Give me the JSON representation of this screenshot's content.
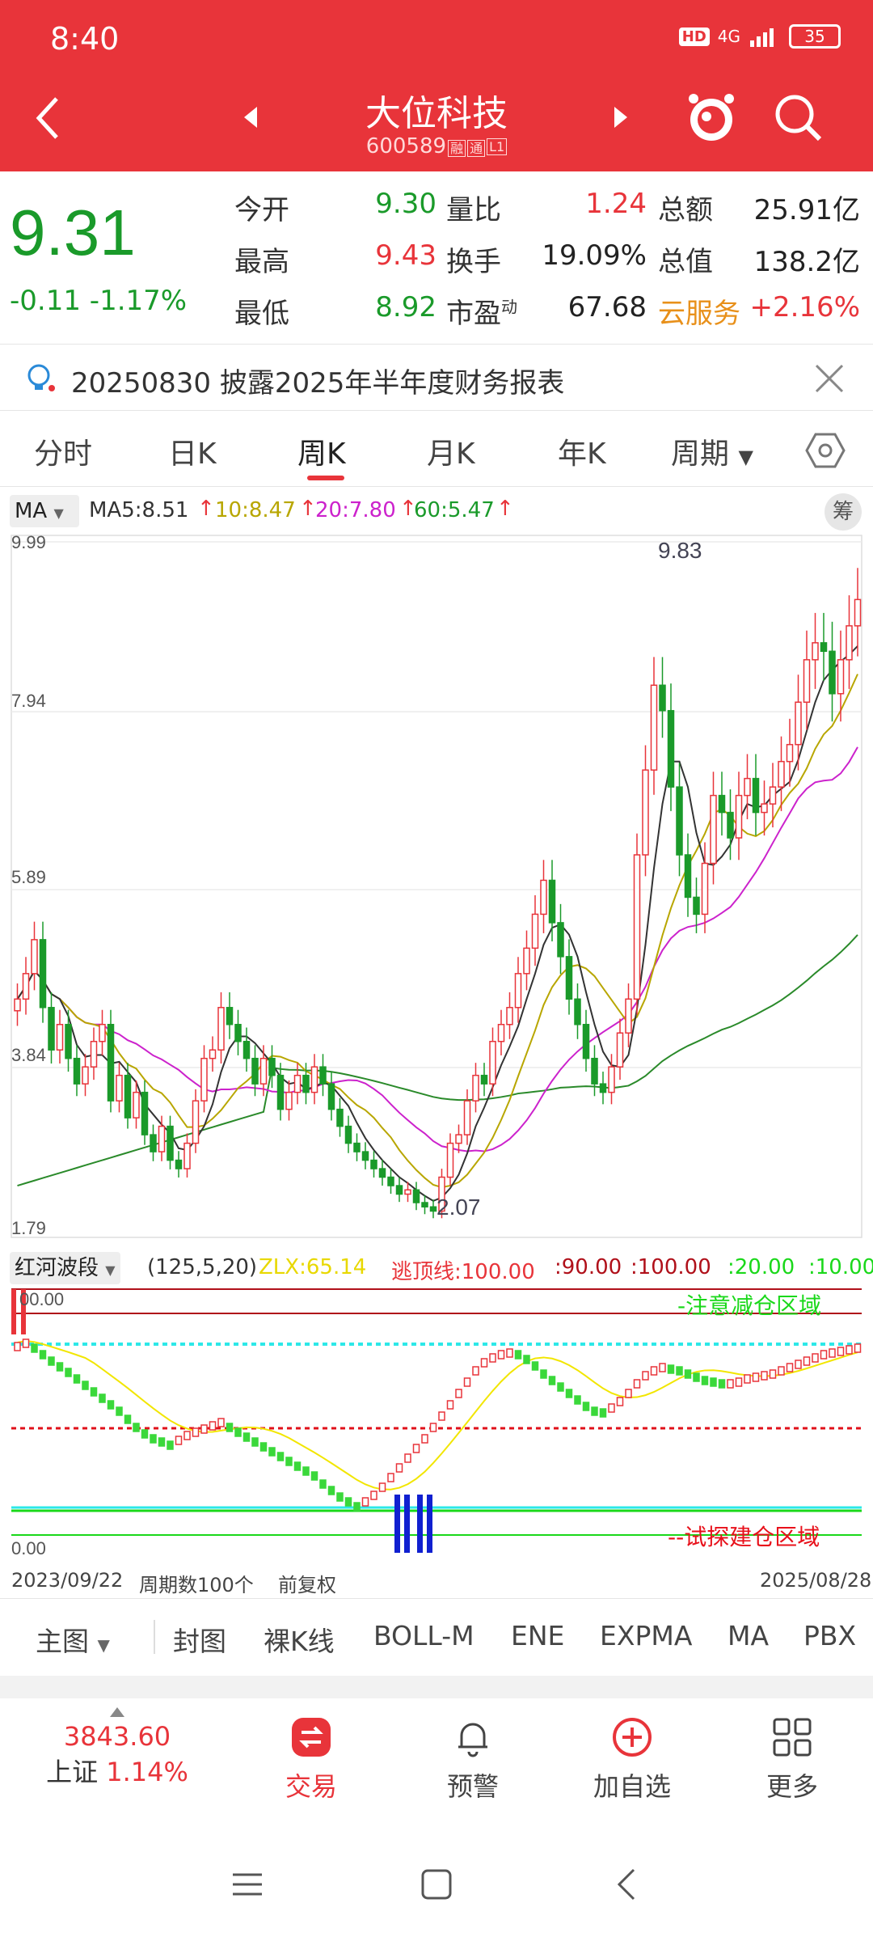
{
  "status": {
    "time": "8:40",
    "battery": "35",
    "signal": "4G"
  },
  "header": {
    "title": "大位科技",
    "code": "600589",
    "tags": [
      "融",
      "通",
      "L1"
    ]
  },
  "quote": {
    "price": "9.31",
    "change": "-0.11",
    "change_pct": "-1.17%",
    "rows": [
      {
        "l1": "今开",
        "v1": "9.30",
        "l2": "量比",
        "v2": "1.24",
        "l3": "总额",
        "v3": "25.91亿"
      },
      {
        "l1": "最高",
        "v1": "9.43",
        "l2": "换手",
        "v2": "19.09%",
        "l3": "总值",
        "v3": "138.2亿"
      },
      {
        "l1": "最低",
        "v1": "8.92",
        "l2": "市盈",
        "l2_sup": "动",
        "v2": "67.68",
        "l3": "云服务",
        "v3": "+2.16%"
      }
    ]
  },
  "notice": {
    "text": "20250830 披露2025年半年度财务报表"
  },
  "tabs": [
    "分时",
    "日K",
    "周K",
    "月K",
    "年K",
    "周期"
  ],
  "ma_legend": {
    "selector": "MA",
    "items": [
      {
        "text": "MA5:8.51",
        "color": "#333333"
      },
      {
        "text": "10:8.47",
        "color": "#b8a600"
      },
      {
        "text": "20:7.80",
        "color": "#cc22cc"
      },
      {
        "text": "60:5.47",
        "color": "#1a9a2a"
      }
    ],
    "chou": "筹"
  },
  "main_chart": {
    "y_ticks": [
      "9.99",
      "7.94",
      "5.89",
      "3.84",
      "1.79"
    ],
    "high_label": "9.83",
    "low_label": "2.07"
  },
  "indicator": {
    "name": "红河波段",
    "params": "(125,5,20)",
    "zlx": "ZLX:65.14",
    "tdx": "逃顶线:100.00",
    "v90": ":90.00",
    "v100": ":100.00",
    "v20": ":20.00",
    "v10": ":10.00",
    "top_tick": "00.00",
    "bottom_tick": "0.00",
    "zone_top": "-注意减仓区域",
    "zone_bottom": "--试探建仓区域"
  },
  "dates": {
    "start": "2023/09/22",
    "period_count": "周期数100个",
    "adjust": "前复权",
    "end": "2025/08/28"
  },
  "indicator_bar": [
    "主图",
    "封图",
    "裸K线",
    "BOLL-M",
    "ENE",
    "EXPMA",
    "MA",
    "PBX"
  ],
  "bottom_nav": {
    "index_value": "3843.60",
    "index_name": "上证",
    "index_pct": "1.14%",
    "items": [
      "交易",
      "预警",
      "加自选",
      "更多"
    ]
  },
  "colors": {
    "brand_red": "#e8343a",
    "up": "#e8343a",
    "down": "#1a9a2a"
  }
}
